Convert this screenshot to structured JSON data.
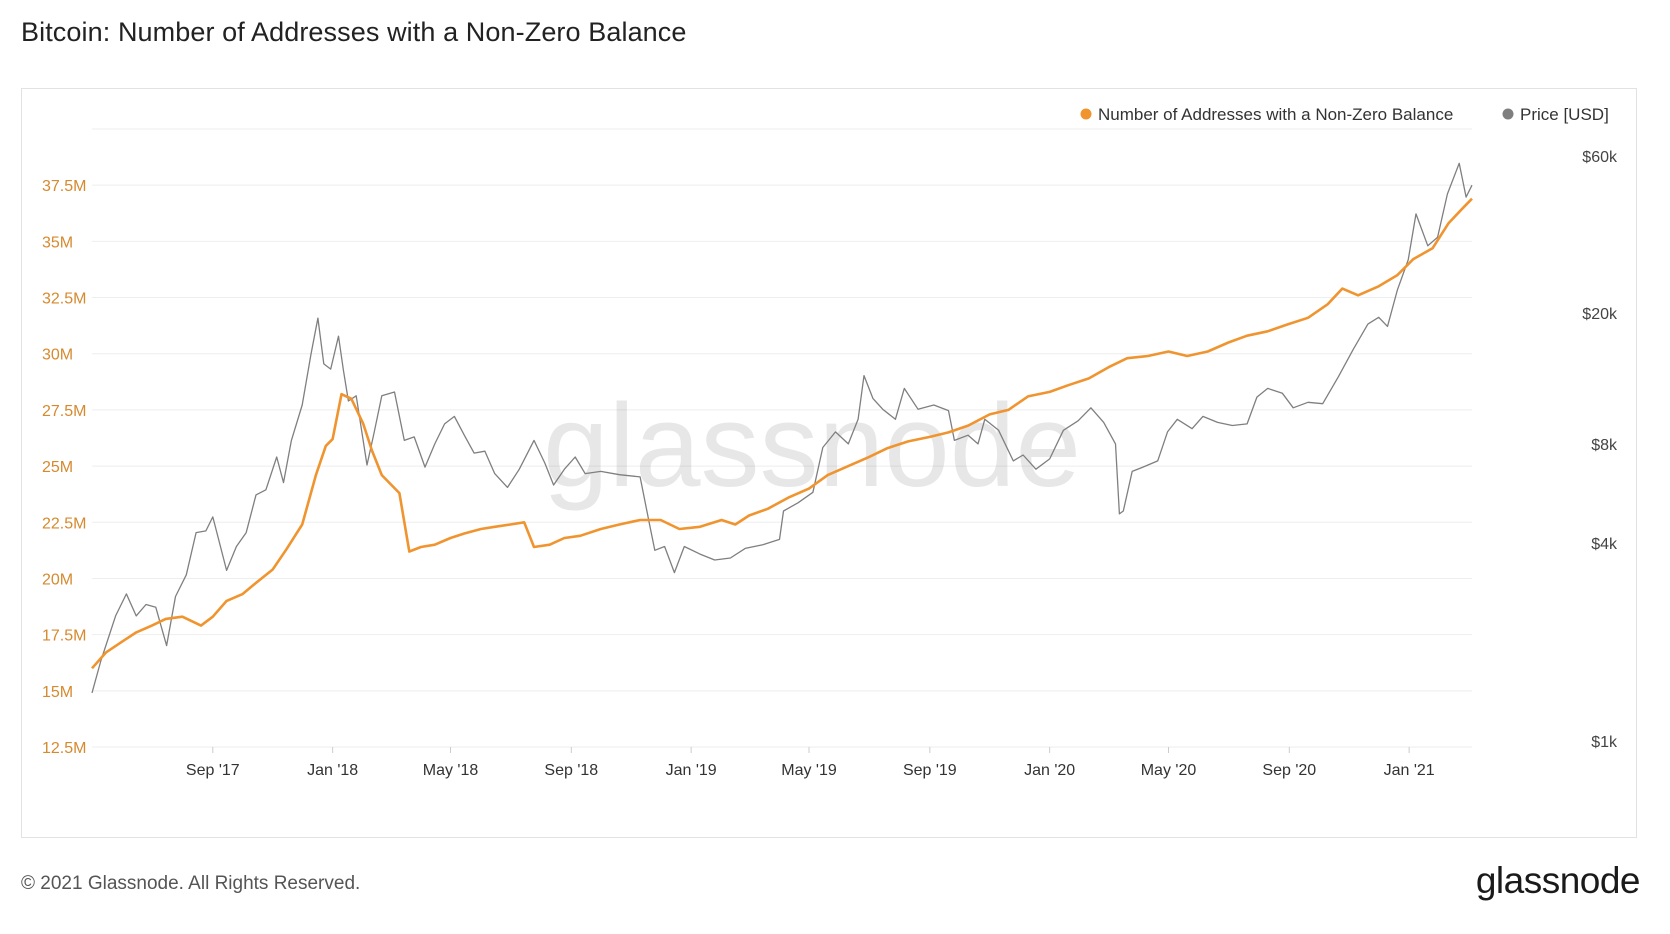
{
  "title": "Bitcoin: Number of Addresses with a Non-Zero Balance",
  "footer": {
    "copyright": "© 2021 Glassnode. All Rights Reserved.",
    "logo": "glassnode"
  },
  "watermark": "glassnode",
  "colors": {
    "addresses": "#f0942f",
    "price": "#7f7f7f",
    "left_axis_text": "#d68a2e",
    "grid": "#eeeeee"
  },
  "chart_data": {
    "type": "line",
    "title": "Bitcoin: Number of Addresses with a Non-Zero Balance",
    "grid": true,
    "legend_position": "top-right",
    "x_ticks": [
      "Sep '17",
      "Jan '18",
      "May '18",
      "Sep '18",
      "Jan '19",
      "May '19",
      "Sep '19",
      "Jan '20",
      "May '20",
      "Sep '20",
      "Jan '21"
    ],
    "x_tick_dates": [
      "2017-09-01",
      "2018-01-01",
      "2018-05-01",
      "2018-09-01",
      "2019-01-01",
      "2019-05-01",
      "2019-09-01",
      "2020-01-01",
      "2020-05-01",
      "2020-09-01",
      "2021-01-01"
    ],
    "x_range": [
      "2017-05-01",
      "2021-03-06"
    ],
    "y_left": {
      "label": "",
      "ticks": [
        "12.5M",
        "15M",
        "17.5M",
        "20M",
        "22.5M",
        "25M",
        "27.5M",
        "30M",
        "32.5M",
        "35M",
        "37.5M"
      ],
      "tick_values": [
        12.5,
        15,
        17.5,
        20,
        22.5,
        25,
        27.5,
        30,
        32.5,
        35,
        37.5
      ],
      "range": [
        12.5,
        40
      ],
      "unit": "M"
    },
    "y_right": {
      "label": "",
      "scale": "log",
      "ticks": [
        "$1k",
        "$4k",
        "$8k",
        "$20k",
        "$60k"
      ],
      "tick_values": [
        1000,
        4000,
        8000,
        20000,
        60000
      ],
      "range": [
        1000,
        60000
      ]
    },
    "series": [
      {
        "name": "Number of Addresses with a Non-Zero Balance",
        "axis": "left",
        "color": "#f0942f",
        "points": [
          [
            "2017-05-01",
            16.0
          ],
          [
            "2017-05-15",
            16.7
          ],
          [
            "2017-06-01",
            17.2
          ],
          [
            "2017-06-15",
            17.6
          ],
          [
            "2017-07-01",
            17.9
          ],
          [
            "2017-07-15",
            18.2
          ],
          [
            "2017-08-01",
            18.3
          ],
          [
            "2017-08-20",
            17.9
          ],
          [
            "2017-09-01",
            18.3
          ],
          [
            "2017-09-15",
            19.0
          ],
          [
            "2017-10-01",
            19.3
          ],
          [
            "2017-10-15",
            19.8
          ],
          [
            "2017-11-01",
            20.4
          ],
          [
            "2017-11-15",
            21.3
          ],
          [
            "2017-12-01",
            22.4
          ],
          [
            "2017-12-15",
            24.6
          ],
          [
            "2017-12-25",
            25.9
          ],
          [
            "2018-01-01",
            26.2
          ],
          [
            "2018-01-10",
            28.2
          ],
          [
            "2018-01-20",
            28.0
          ],
          [
            "2018-02-01",
            26.9
          ],
          [
            "2018-02-10",
            25.7
          ],
          [
            "2018-02-20",
            24.6
          ],
          [
            "2018-03-01",
            24.2
          ],
          [
            "2018-03-10",
            23.8
          ],
          [
            "2018-03-20",
            21.2
          ],
          [
            "2018-04-01",
            21.4
          ],
          [
            "2018-04-15",
            21.5
          ],
          [
            "2018-05-01",
            21.8
          ],
          [
            "2018-05-15",
            22.0
          ],
          [
            "2018-06-01",
            22.2
          ],
          [
            "2018-06-15",
            22.3
          ],
          [
            "2018-07-01",
            22.4
          ],
          [
            "2018-07-15",
            22.5
          ],
          [
            "2018-07-25",
            21.4
          ],
          [
            "2018-08-10",
            21.5
          ],
          [
            "2018-08-25",
            21.8
          ],
          [
            "2018-09-10",
            21.9
          ],
          [
            "2018-10-01",
            22.2
          ],
          [
            "2018-10-20",
            22.4
          ],
          [
            "2018-11-10",
            22.6
          ],
          [
            "2018-12-01",
            22.6
          ],
          [
            "2018-12-20",
            22.2
          ],
          [
            "2019-01-10",
            22.3
          ],
          [
            "2019-02-01",
            22.6
          ],
          [
            "2019-02-15",
            22.4
          ],
          [
            "2019-03-01",
            22.8
          ],
          [
            "2019-03-20",
            23.1
          ],
          [
            "2019-04-10",
            23.6
          ],
          [
            "2019-05-01",
            24.0
          ],
          [
            "2019-05-20",
            24.6
          ],
          [
            "2019-06-10",
            25.0
          ],
          [
            "2019-07-01",
            25.4
          ],
          [
            "2019-07-20",
            25.8
          ],
          [
            "2019-08-10",
            26.1
          ],
          [
            "2019-09-01",
            26.3
          ],
          [
            "2019-09-20",
            26.5
          ],
          [
            "2019-10-10",
            26.8
          ],
          [
            "2019-11-01",
            27.3
          ],
          [
            "2019-11-20",
            27.5
          ],
          [
            "2019-12-10",
            28.1
          ],
          [
            "2020-01-01",
            28.3
          ],
          [
            "2020-01-20",
            28.6
          ],
          [
            "2020-02-10",
            28.9
          ],
          [
            "2020-03-01",
            29.4
          ],
          [
            "2020-03-20",
            29.8
          ],
          [
            "2020-04-10",
            29.9
          ],
          [
            "2020-05-01",
            30.1
          ],
          [
            "2020-05-20",
            29.9
          ],
          [
            "2020-06-10",
            30.1
          ],
          [
            "2020-07-01",
            30.5
          ],
          [
            "2020-07-20",
            30.8
          ],
          [
            "2020-08-10",
            31.0
          ],
          [
            "2020-08-30",
            31.3
          ],
          [
            "2020-09-20",
            31.6
          ],
          [
            "2020-10-10",
            32.2
          ],
          [
            "2020-10-25",
            32.9
          ],
          [
            "2020-11-10",
            32.6
          ],
          [
            "2020-12-01",
            33.0
          ],
          [
            "2020-12-20",
            33.5
          ],
          [
            "2021-01-05",
            34.2
          ],
          [
            "2021-01-25",
            34.7
          ],
          [
            "2021-02-10",
            35.8
          ],
          [
            "2021-02-25",
            36.5
          ],
          [
            "2021-03-06",
            36.9
          ]
        ]
      },
      {
        "name": "Price [USD]",
        "axis": "right",
        "color": "#7f7f7f",
        "points": [
          [
            "2017-05-01",
            1400
          ],
          [
            "2017-05-10",
            1750
          ],
          [
            "2017-05-25",
            2400
          ],
          [
            "2017-06-05",
            2800
          ],
          [
            "2017-06-15",
            2400
          ],
          [
            "2017-06-25",
            2600
          ],
          [
            "2017-07-05",
            2550
          ],
          [
            "2017-07-16",
            1950
          ],
          [
            "2017-07-25",
            2750
          ],
          [
            "2017-08-05",
            3200
          ],
          [
            "2017-08-15",
            4300
          ],
          [
            "2017-08-25",
            4350
          ],
          [
            "2017-09-01",
            4800
          ],
          [
            "2017-09-15",
            3300
          ],
          [
            "2017-09-25",
            3900
          ],
          [
            "2017-10-05",
            4300
          ],
          [
            "2017-10-15",
            5600
          ],
          [
            "2017-10-25",
            5800
          ],
          [
            "2017-11-05",
            7300
          ],
          [
            "2017-11-12",
            6100
          ],
          [
            "2017-11-20",
            8200
          ],
          [
            "2017-12-01",
            10500
          ],
          [
            "2017-12-10",
            15000
          ],
          [
            "2017-12-17",
            19300
          ],
          [
            "2017-12-23",
            14000
          ],
          [
            "2017-12-30",
            13500
          ],
          [
            "2018-01-07",
            17000
          ],
          [
            "2018-01-12",
            13400
          ],
          [
            "2018-01-17",
            10800
          ],
          [
            "2018-01-25",
            11200
          ],
          [
            "2018-02-05",
            6900
          ],
          [
            "2018-02-12",
            8600
          ],
          [
            "2018-02-20",
            11200
          ],
          [
            "2018-03-05",
            11500
          ],
          [
            "2018-03-15",
            8200
          ],
          [
            "2018-03-25",
            8400
          ],
          [
            "2018-04-05",
            6800
          ],
          [
            "2018-04-15",
            8000
          ],
          [
            "2018-04-25",
            9200
          ],
          [
            "2018-05-05",
            9700
          ],
          [
            "2018-05-15",
            8500
          ],
          [
            "2018-05-25",
            7500
          ],
          [
            "2018-06-05",
            7600
          ],
          [
            "2018-06-15",
            6500
          ],
          [
            "2018-06-28",
            5900
          ],
          [
            "2018-07-10",
            6700
          ],
          [
            "2018-07-25",
            8200
          ],
          [
            "2018-08-05",
            7000
          ],
          [
            "2018-08-14",
            6000
          ],
          [
            "2018-08-25",
            6700
          ],
          [
            "2018-09-05",
            7300
          ],
          [
            "2018-09-15",
            6500
          ],
          [
            "2018-10-01",
            6600
          ],
          [
            "2018-10-20",
            6450
          ],
          [
            "2018-11-10",
            6350
          ],
          [
            "2018-11-20",
            4500
          ],
          [
            "2018-11-25",
            3800
          ],
          [
            "2018-12-05",
            3900
          ],
          [
            "2018-12-15",
            3250
          ],
          [
            "2018-12-25",
            3900
          ],
          [
            "2019-01-10",
            3700
          ],
          [
            "2019-01-25",
            3550
          ],
          [
            "2019-02-10",
            3600
          ],
          [
            "2019-02-25",
            3850
          ],
          [
            "2019-03-15",
            3950
          ],
          [
            "2019-04-01",
            4100
          ],
          [
            "2019-04-05",
            5000
          ],
          [
            "2019-04-20",
            5300
          ],
          [
            "2019-05-05",
            5700
          ],
          [
            "2019-05-15",
            7800
          ],
          [
            "2019-05-28",
            8700
          ],
          [
            "2019-06-10",
            8000
          ],
          [
            "2019-06-20",
            9500
          ],
          [
            "2019-06-26",
            12900
          ],
          [
            "2019-07-05",
            11000
          ],
          [
            "2019-07-15",
            10200
          ],
          [
            "2019-07-28",
            9500
          ],
          [
            "2019-08-06",
            11800
          ],
          [
            "2019-08-20",
            10200
          ],
          [
            "2019-09-05",
            10500
          ],
          [
            "2019-09-20",
            10100
          ],
          [
            "2019-09-26",
            8200
          ],
          [
            "2019-10-10",
            8500
          ],
          [
            "2019-10-20",
            8000
          ],
          [
            "2019-10-27",
            9500
          ],
          [
            "2019-11-10",
            8800
          ],
          [
            "2019-11-25",
            7100
          ],
          [
            "2019-12-05",
            7400
          ],
          [
            "2019-12-18",
            6700
          ],
          [
            "2020-01-01",
            7200
          ],
          [
            "2020-01-15",
            8800
          ],
          [
            "2020-01-30",
            9400
          ],
          [
            "2020-02-12",
            10300
          ],
          [
            "2020-02-25",
            9300
          ],
          [
            "2020-03-08",
            8000
          ],
          [
            "2020-03-12",
            4900
          ],
          [
            "2020-03-16",
            5000
          ],
          [
            "2020-03-25",
            6600
          ],
          [
            "2020-04-05",
            6800
          ],
          [
            "2020-04-20",
            7100
          ],
          [
            "2020-04-30",
            8700
          ],
          [
            "2020-05-10",
            9500
          ],
          [
            "2020-05-25",
            8900
          ],
          [
            "2020-06-05",
            9700
          ],
          [
            "2020-06-20",
            9300
          ],
          [
            "2020-07-05",
            9100
          ],
          [
            "2020-07-20",
            9200
          ],
          [
            "2020-07-30",
            11100
          ],
          [
            "2020-08-10",
            11800
          ],
          [
            "2020-08-25",
            11400
          ],
          [
            "2020-09-05",
            10300
          ],
          [
            "2020-09-20",
            10700
          ],
          [
            "2020-10-05",
            10600
          ],
          [
            "2020-10-21",
            12800
          ],
          [
            "2020-11-05",
            15500
          ],
          [
            "2020-11-20",
            18500
          ],
          [
            "2020-12-01",
            19400
          ],
          [
            "2020-12-10",
            18200
          ],
          [
            "2020-12-20",
            23500
          ],
          [
            "2020-12-31",
            29000
          ],
          [
            "2021-01-08",
            40000
          ],
          [
            "2021-01-20",
            32000
          ],
          [
            "2021-01-30",
            34000
          ],
          [
            "2021-02-09",
            46000
          ],
          [
            "2021-02-21",
            57000
          ],
          [
            "2021-02-28",
            45000
          ],
          [
            "2021-03-06",
            48900
          ]
        ]
      }
    ]
  }
}
